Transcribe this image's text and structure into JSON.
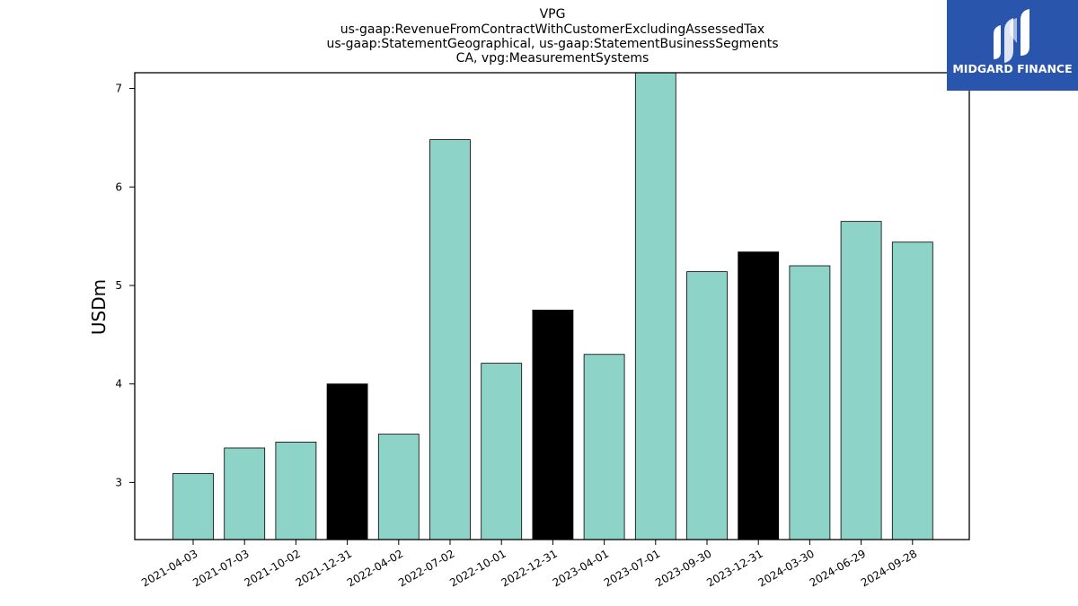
{
  "chart_data": {
    "type": "bar",
    "title_lines": [
      "VPG",
      "us-gaap:RevenueFromContractWithCustomerExcludingAssessedTax",
      "us-gaap:StatementGeographical, us-gaap:StatementBusinessSegments",
      "CA, vpg:MeasurementSystems"
    ],
    "ylabel": "USDm",
    "xlabel": "",
    "categories": [
      "2021-04-03",
      "2021-07-03",
      "2021-10-02",
      "2021-12-31",
      "2022-04-02",
      "2022-07-02",
      "2022-10-01",
      "2022-12-31",
      "2023-04-01",
      "2023-07-01",
      "2023-09-30",
      "2023-12-31",
      "2024-03-30",
      "2024-06-29",
      "2024-09-28"
    ],
    "values": [
      3.09,
      3.35,
      3.41,
      4.0,
      3.49,
      6.48,
      4.21,
      4.75,
      4.3,
      7.16,
      5.14,
      5.34,
      5.2,
      5.65,
      5.44
    ],
    "highlighted": [
      false,
      false,
      false,
      true,
      false,
      false,
      false,
      true,
      false,
      false,
      false,
      true,
      false,
      false,
      false
    ],
    "ylim": [
      2.42,
      7.16
    ],
    "yticks": [
      3,
      4,
      5,
      6,
      7
    ],
    "grid": false,
    "colors": {
      "bar": "#8dd3c7",
      "highlight": "#000000",
      "edge": "#000000"
    }
  },
  "logo": {
    "text": "MIDGARD FINANCE",
    "background": "#2a55ac"
  }
}
